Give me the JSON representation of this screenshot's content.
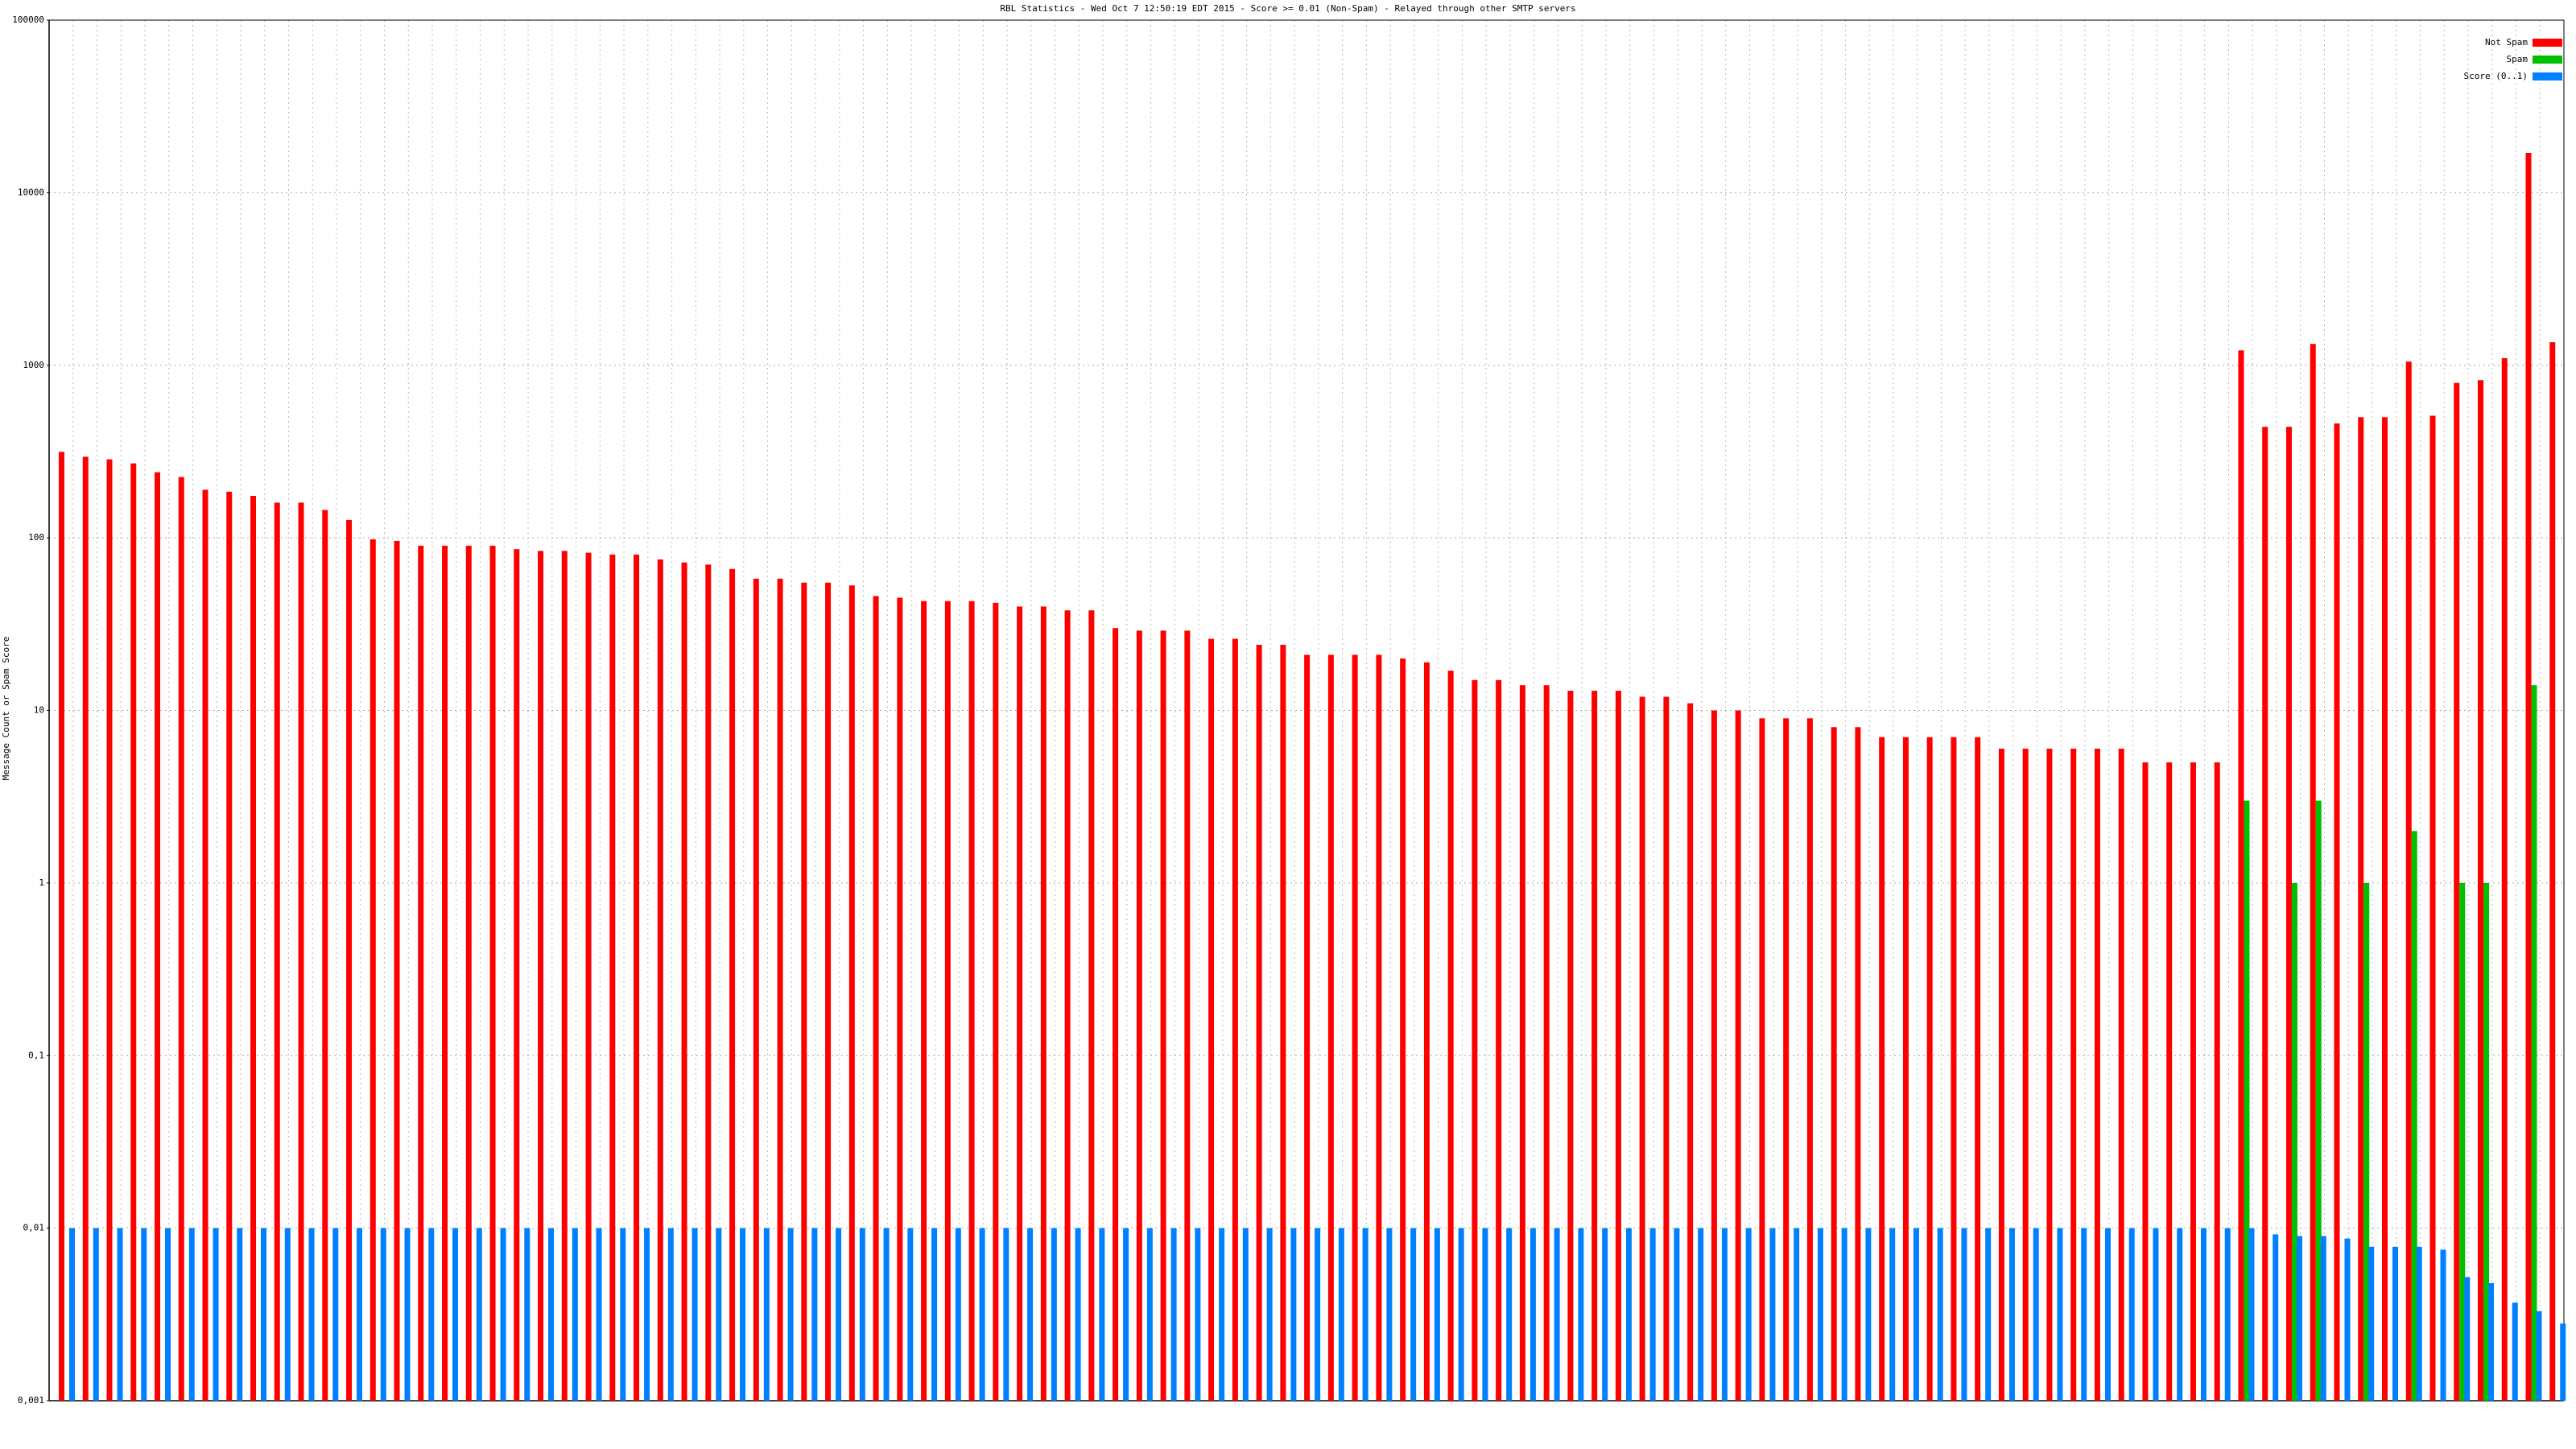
{
  "chart_data": {
    "type": "bar",
    "title": "RBL Statistics - Wed Oct  7 12:50:19 EDT 2015 - Score >= 0.01 (Non-Spam) - Relayed through other SMTP servers",
    "y_label": "Message Count or Spam Score",
    "log_scale": true,
    "grid": true,
    "legend_position": "upper right",
    "ylim": [
      0.001,
      100000
    ],
    "yticks": [
      {
        "value": 0.001,
        "label": "0,001"
      },
      {
        "value": 0.01,
        "label": "0,01"
      },
      {
        "value": 0.1,
        "label": "0,1"
      },
      1,
      10,
      100,
      1000,
      10000,
      100000
    ],
    "categories": [
      null,
      null,
      null,
      null,
      null,
      null,
      null,
      null,
      null,
      null,
      null,
      null,
      null,
      null,
      null,
      null,
      null,
      null,
      null,
      null,
      null,
      null,
      null,
      null,
      null,
      null,
      null,
      null,
      null,
      null,
      null,
      null,
      null,
      null,
      null,
      null,
      null,
      null,
      null,
      null,
      null,
      null,
      null,
      null,
      null,
      null,
      null,
      null,
      null,
      null,
      null,
      null,
      null,
      null,
      null,
      null,
      null,
      null,
      null,
      null,
      null,
      null,
      null,
      null,
      null,
      null,
      null,
      null,
      null,
      null,
      null,
      null,
      null,
      null,
      null,
      null,
      null,
      null,
      null,
      null,
      null,
      null,
      null,
      null,
      null,
      null,
      null,
      null,
      null,
      null,
      null,
      null,
      null,
      null,
      null,
      null,
      null,
      null,
      null,
      null,
      null,
      null,
      null,
      null,
      null
    ],
    "series": [
      {
        "name": "Not Spam",
        "color": "#ff0000",
        "values": [
          315,
          295,
          285,
          270,
          240,
          225,
          190,
          185,
          175,
          160,
          160,
          145,
          127,
          98,
          96,
          90,
          90,
          90,
          90,
          86,
          84,
          84,
          82,
          80,
          80,
          75,
          72,
          70,
          66,
          58,
          58,
          55,
          55,
          53,
          46,
          45,
          43,
          43,
          43,
          42,
          40,
          40,
          38,
          38,
          30,
          29,
          29,
          29,
          26,
          26,
          24,
          24,
          21,
          21,
          21,
          21,
          20,
          19,
          17,
          15,
          15,
          14,
          14,
          13,
          13,
          13,
          12,
          12,
          11,
          10,
          10,
          9,
          9,
          9,
          8,
          8,
          7,
          7,
          7,
          7,
          7,
          6,
          6,
          6,
          6,
          6,
          6,
          5,
          5,
          5,
          5,
          1220,
          440,
          440,
          1330,
          460,
          500,
          500,
          1050,
          510,
          790,
          820,
          1100,
          17000,
          1360
        ]
      },
      {
        "name": "Spam",
        "color": "#00c000",
        "values": [
          null,
          null,
          null,
          null,
          null,
          null,
          null,
          null,
          null,
          null,
          null,
          null,
          null,
          null,
          null,
          null,
          null,
          null,
          null,
          null,
          null,
          null,
          null,
          null,
          null,
          null,
          null,
          null,
          null,
          null,
          null,
          null,
          null,
          null,
          null,
          null,
          null,
          null,
          null,
          null,
          null,
          null,
          null,
          null,
          null,
          null,
          null,
          null,
          null,
          null,
          null,
          null,
          null,
          null,
          null,
          null,
          null,
          null,
          null,
          null,
          null,
          null,
          null,
          null,
          null,
          null,
          null,
          null,
          null,
          null,
          null,
          null,
          null,
          null,
          null,
          null,
          null,
          null,
          null,
          null,
          null,
          null,
          null,
          null,
          null,
          null,
          null,
          null,
          null,
          null,
          null,
          3,
          null,
          1,
          3,
          null,
          1,
          null,
          2,
          null,
          1,
          1,
          null,
          14,
          null
        ]
      },
      {
        "name": "Score (0..1)",
        "color": "#0080ff",
        "values": [
          0.01,
          0.01,
          0.01,
          0.01,
          0.01,
          0.01,
          0.01,
          0.01,
          0.01,
          0.01,
          0.01,
          0.01,
          0.01,
          0.01,
          0.01,
          0.01,
          0.01,
          0.01,
          0.01,
          0.01,
          0.01,
          0.01,
          0.01,
          0.01,
          0.01,
          0.01,
          0.01,
          0.01,
          0.01,
          0.01,
          0.01,
          0.01,
          0.01,
          0.01,
          0.01,
          0.01,
          0.01,
          0.01,
          0.01,
          0.01,
          0.01,
          0.01,
          0.01,
          0.01,
          0.01,
          0.01,
          0.01,
          0.01,
          0.01,
          0.01,
          0.01,
          0.01,
          0.01,
          0.01,
          0.01,
          0.01,
          0.01,
          0.01,
          0.01,
          0.01,
          0.01,
          0.01,
          0.01,
          0.01,
          0.01,
          0.01,
          0.01,
          0.01,
          0.01,
          0.01,
          0.01,
          0.01,
          0.01,
          0.01,
          0.01,
          0.01,
          0.01,
          0.01,
          0.01,
          0.01,
          0.01,
          0.01,
          0.01,
          0.01,
          0.01,
          0.01,
          0.01,
          0.01,
          0.01,
          0.01,
          0.01,
          0.01,
          0.0092,
          0.009,
          0.009,
          0.0087,
          0.0078,
          0.0078,
          0.0078,
          0.0075,
          0.0052,
          0.0048,
          0.0037,
          0.0033,
          0.0028
        ]
      }
    ]
  }
}
